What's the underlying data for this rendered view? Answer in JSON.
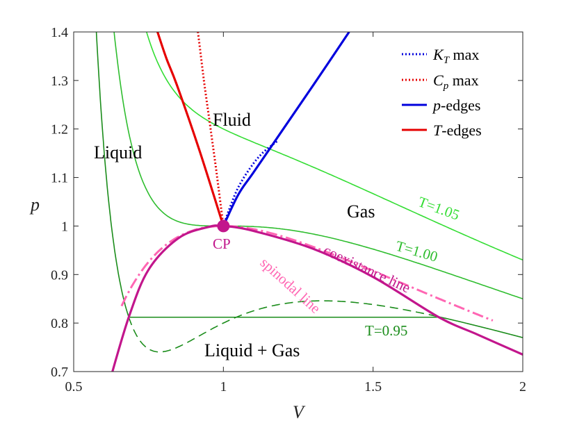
{
  "chart_data": {
    "type": "line",
    "xlabel": "V",
    "ylabel": "p",
    "xlim": [
      0.5,
      2
    ],
    "ylim": [
      0.7,
      1.4
    ],
    "xticks": [
      "0.5",
      "1",
      "1.5",
      "2"
    ],
    "yticks": [
      "0.7",
      "0.8",
      "0.9",
      "1",
      "1.1",
      "1.2",
      "1.3",
      "1.4"
    ],
    "grid": false,
    "legend_position": "top-right",
    "legend": [
      {
        "label": "K_T max",
        "color": "#0000dd",
        "style": "dotted"
      },
      {
        "label": "C_p max",
        "color": "#e60000",
        "style": "dotted"
      },
      {
        "label": "p-edges",
        "color": "#0000dd",
        "style": "solid"
      },
      {
        "label": "T-edges",
        "color": "#e60000",
        "style": "solid"
      }
    ],
    "regions": {
      "fluid": "Fluid",
      "liquid": "Liquid",
      "gas": "Gas",
      "liquid_gas": "Liquid + Gas"
    },
    "annotations": {
      "critical_point": "CP",
      "coexistence": "coexistance line",
      "spinodal": "spinodal line",
      "t105": "T=1.05",
      "t100": "T=1.00",
      "t095": "T=0.95"
    },
    "critical_point": {
      "x": 1.0,
      "y": 1.0
    },
    "colors": {
      "coexistence": "#c2168c",
      "spinodal": "#ff66b3",
      "isotherm_light": "#33dd33",
      "isotherm_mid": "#2ebd2e",
      "isotherm_dark": "#1a8c1a",
      "blue": "#0000dd",
      "red": "#e60000",
      "cp_marker": "#c2168c"
    },
    "series": [
      {
        "id": "iso105",
        "type": "vdw_isotherm",
        "T": 1.05,
        "xrange": [
          0.5,
          2
        ]
      },
      {
        "id": "iso100",
        "type": "vdw_isotherm",
        "T": 1.0,
        "xrange": [
          0.5,
          2
        ]
      },
      {
        "id": "iso095",
        "type": "vdw_isotherm",
        "T": 0.95,
        "xrange": [
          0.5,
          2
        ],
        "tie_line_p": 0.812,
        "tie_line_x": [
          0.684,
          1.72
        ]
      },
      {
        "id": "spinodal",
        "type": "spinodal",
        "xrange": [
          0.6,
          2
        ]
      },
      {
        "id": "coexistence",
        "points": [
          [
            0.62,
            0.68
          ],
          [
            0.684,
            0.812
          ],
          [
            0.75,
            0.91
          ],
          [
            0.85,
            0.975
          ],
          [
            0.95,
            0.998
          ],
          [
            1.0,
            1.0
          ],
          [
            1.1,
            0.99
          ],
          [
            1.3,
            0.953
          ],
          [
            1.5,
            0.895
          ],
          [
            1.72,
            0.812
          ],
          [
            1.85,
            0.776
          ],
          [
            2.0,
            0.735
          ]
        ]
      },
      {
        "id": "t_edges",
        "points": [
          [
            1.0,
            1.0
          ],
          [
            0.92,
            1.156
          ],
          [
            0.845,
            1.29
          ],
          [
            0.81,
            1.345
          ],
          [
            0.78,
            1.4
          ]
        ]
      },
      {
        "id": "p_edges",
        "points": [
          [
            1.0,
            1.0
          ],
          [
            1.05,
            1.065
          ],
          [
            1.1,
            1.11
          ],
          [
            1.2,
            1.2
          ],
          [
            1.3,
            1.29
          ],
          [
            1.42,
            1.4
          ]
        ]
      },
      {
        "id": "cp_max",
        "points": [
          [
            1.0,
            1.0
          ],
          [
            0.975,
            1.12
          ],
          [
            0.955,
            1.21
          ],
          [
            0.935,
            1.3
          ],
          [
            0.915,
            1.4
          ]
        ]
      },
      {
        "id": "kt_max",
        "points": [
          [
            1.0,
            1.0
          ],
          [
            1.02,
            1.035
          ],
          [
            1.05,
            1.08
          ],
          [
            1.09,
            1.12
          ],
          [
            1.13,
            1.15
          ],
          [
            1.18,
            1.175
          ]
        ]
      }
    ]
  }
}
